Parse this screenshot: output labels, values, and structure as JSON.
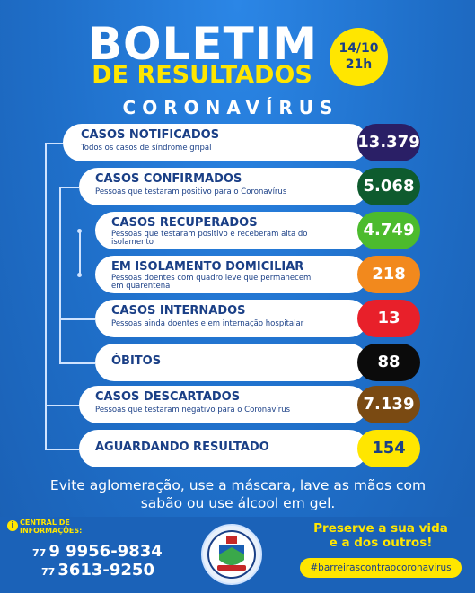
{
  "header": {
    "title_line1": "BOLETIM",
    "title_line2": "DE RESULTADOS",
    "date": "14/10",
    "time": "21h",
    "subtitle": "CORONAVÍRUS"
  },
  "colors": {
    "background": "#1f6fc9",
    "accent_yellow": "#ffe600",
    "text_navy": "#1a3f86"
  },
  "rows": [
    {
      "label": "CASOS NOTIFICADOS",
      "desc1": "Todos os casos de síndrome gripal",
      "desc2": "",
      "value": "13.379",
      "color": "#2a1f66"
    },
    {
      "label": "CASOS CONFIRMADOS",
      "desc1": "Pessoas que testaram positivo para o Coronavírus",
      "desc2": "",
      "value": "5.068",
      "color": "#0e5b2e"
    },
    {
      "label": "CASOS RECUPERADOS",
      "desc1": "Pessoas que testaram positivo e receberam alta do",
      "desc2": "isolamento",
      "value": "4.749",
      "color": "#4cbb2d"
    },
    {
      "label": "EM ISOLAMENTO DOMICILIAR",
      "desc1": "Pessoas doentes com quadro leve que permanecem",
      "desc2": "em quarentena",
      "value": "218",
      "color": "#f2891d"
    },
    {
      "label": "CASOS INTERNADOS",
      "desc1": "Pessoas ainda doentes e em internação hospitalar",
      "desc2": "",
      "value": "13",
      "color": "#e8202a"
    },
    {
      "label": "ÓBITOS",
      "desc1": "",
      "desc2": "",
      "value": "88",
      "color": "#0b0b0b"
    },
    {
      "label": "CASOS DESCARTADOS",
      "desc1": "Pessoas que testaram negativo para o Coronavírus",
      "desc2": "",
      "value": "7.139",
      "color": "#7a4a12"
    },
    {
      "label": "AGUARDANDO RESULTADO",
      "desc1": "",
      "desc2": "",
      "value": "154",
      "color": "#ffe600"
    }
  ],
  "footer": {
    "advice_line1": "Evite aglomeração, use a máscara, lave as mãos com",
    "advice_line2": "sabão ou use álcool em gel.",
    "central_label_line1": "CENTRAL DE",
    "central_label_line2": "INFORMAÇÕES:",
    "info_icon": "i",
    "phone1_prefix": "77",
    "phone1": "9 9956-9834",
    "phone2_prefix": "77",
    "phone2": "3613-9250",
    "preserve_line1": "Preserve a sua vida",
    "preserve_line2": "e a dos outros!",
    "hashtag": "#barreirascontraocoronavirus",
    "seal_icon": "city-seal-icon"
  }
}
